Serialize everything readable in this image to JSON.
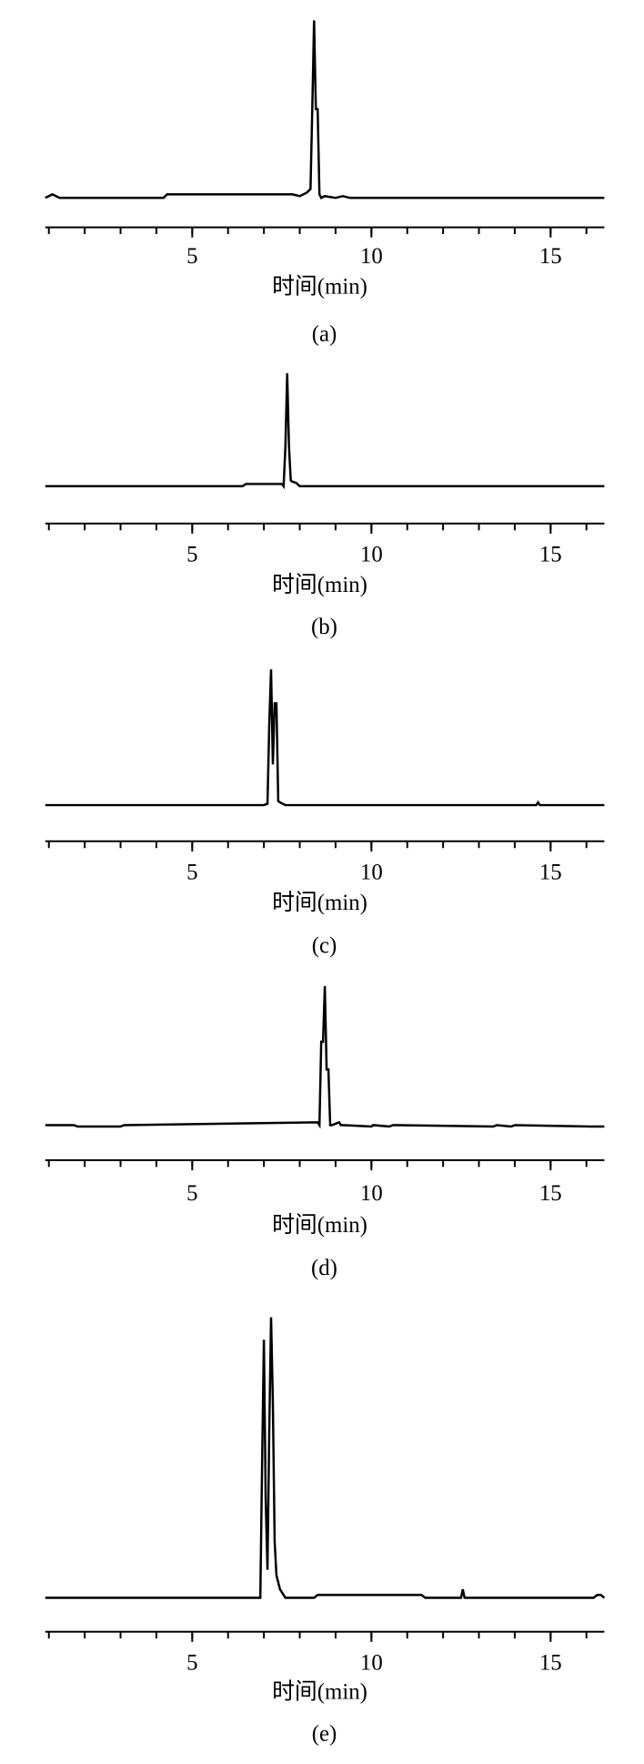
{
  "chart_data": [
    {
      "type": "line",
      "title": "(a)",
      "xlabel": "时间(min)",
      "xlim": [
        0.9,
        16.5
      ],
      "ylim": [
        -5,
        100
      ],
      "xticks": [
        5,
        10,
        15
      ],
      "xminorticks": [
        1,
        2,
        3,
        4,
        5,
        6,
        7,
        8,
        9,
        10,
        11,
        12,
        13,
        14,
        15,
        16
      ],
      "color": "#000000",
      "x": [
        0.9,
        1.1,
        1.2,
        1.3,
        4.2,
        4.3,
        7.8,
        8.0,
        8.2,
        8.3,
        8.35,
        8.4,
        8.45,
        8.5,
        8.55,
        8.6,
        8.7,
        9.0,
        9.2,
        9.4,
        16.5
      ],
      "values": [
        0,
        2,
        1,
        0,
        0,
        2,
        2,
        1,
        3,
        5,
        50,
        100,
        50,
        50,
        2,
        0,
        1,
        0,
        1,
        0,
        0
      ]
    },
    {
      "type": "line",
      "title": "(b)",
      "xlabel": "时间(min)",
      "xlim": [
        0.9,
        16.5
      ],
      "ylim": [
        -5,
        100
      ],
      "xticks": [
        5,
        10,
        15
      ],
      "xminorticks": [
        1,
        2,
        3,
        4,
        5,
        6,
        7,
        8,
        9,
        10,
        11,
        12,
        13,
        14,
        15,
        16
      ],
      "color": "#000000",
      "x": [
        0.9,
        6.4,
        6.5,
        7.5,
        7.55,
        7.6,
        7.65,
        7.7,
        7.75,
        7.8,
        7.9,
        8.0,
        8.1,
        16.5
      ],
      "values": [
        0,
        0,
        2,
        2,
        0,
        35,
        100,
        35,
        5,
        4,
        3,
        0,
        0,
        0
      ]
    },
    {
      "type": "line",
      "title": "(c)",
      "xlabel": "时间(min)",
      "xlim": [
        0.9,
        16.5
      ],
      "ylim": [
        -5,
        100
      ],
      "xticks": [
        5,
        10,
        15
      ],
      "xminorticks": [
        1,
        2,
        3,
        4,
        5,
        6,
        7,
        8,
        9,
        10,
        11,
        12,
        13,
        14,
        15,
        16
      ],
      "color": "#000000",
      "x": [
        0.9,
        7.0,
        7.1,
        7.15,
        7.2,
        7.25,
        7.3,
        7.35,
        7.4,
        7.45,
        7.6,
        14.6,
        14.65,
        14.7,
        16.5
      ],
      "values": [
        0,
        0,
        1,
        60,
        100,
        30,
        75,
        75,
        3,
        2,
        0,
        0,
        2,
        0,
        0
      ]
    },
    {
      "type": "line",
      "title": "(d)",
      "xlabel": "时间(min)",
      "xlim": [
        0.9,
        16.5
      ],
      "ylim": [
        -5,
        100
      ],
      "xticks": [
        5,
        10,
        15
      ],
      "xminorticks": [
        1,
        2,
        3,
        4,
        5,
        6,
        7,
        8,
        9,
        10,
        11,
        12,
        13,
        14,
        15,
        16
      ],
      "color": "#000000",
      "x": [
        0.9,
        1.7,
        1.8,
        3.0,
        3.1,
        8.5,
        8.55,
        8.6,
        8.65,
        8.7,
        8.75,
        8.8,
        8.85,
        8.9,
        9.1,
        9.15,
        9.2,
        10.0,
        10.05,
        10.5,
        10.6,
        10.7,
        13.4,
        13.5,
        13.9,
        14.0,
        16.1,
        16.2,
        16.5
      ],
      "values": [
        0,
        0,
        -1,
        -1,
        0,
        2,
        0,
        60,
        60,
        100,
        40,
        40,
        0,
        0,
        2,
        0,
        0,
        -1,
        0,
        -1,
        0,
        0,
        -1,
        0,
        -1,
        0,
        -1,
        -1,
        -1
      ]
    },
    {
      "type": "line",
      "title": "(e)",
      "xlabel": "时间(min)",
      "xlim": [
        0.9,
        16.5
      ],
      "ylim": [
        -5,
        100
      ],
      "xticks": [
        5,
        10,
        15
      ],
      "xminorticks": [
        1,
        2,
        3,
        4,
        5,
        6,
        7,
        8,
        9,
        10,
        11,
        12,
        13,
        14,
        15,
        16
      ],
      "color": "#000000",
      "x": [
        0.9,
        6.9,
        6.95,
        7.0,
        7.05,
        7.1,
        7.15,
        7.2,
        7.25,
        7.3,
        7.35,
        7.45,
        7.6,
        8.4,
        8.5,
        11.4,
        11.5,
        12.5,
        12.55,
        12.6,
        12.65,
        16.2,
        16.3,
        16.4,
        16.5
      ],
      "values": [
        0,
        0,
        48,
        92,
        35,
        10,
        60,
        100,
        70,
        20,
        8,
        3,
        0,
        0,
        1,
        1,
        0,
        0,
        3,
        0,
        0,
        0,
        1,
        1,
        0
      ]
    }
  ]
}
